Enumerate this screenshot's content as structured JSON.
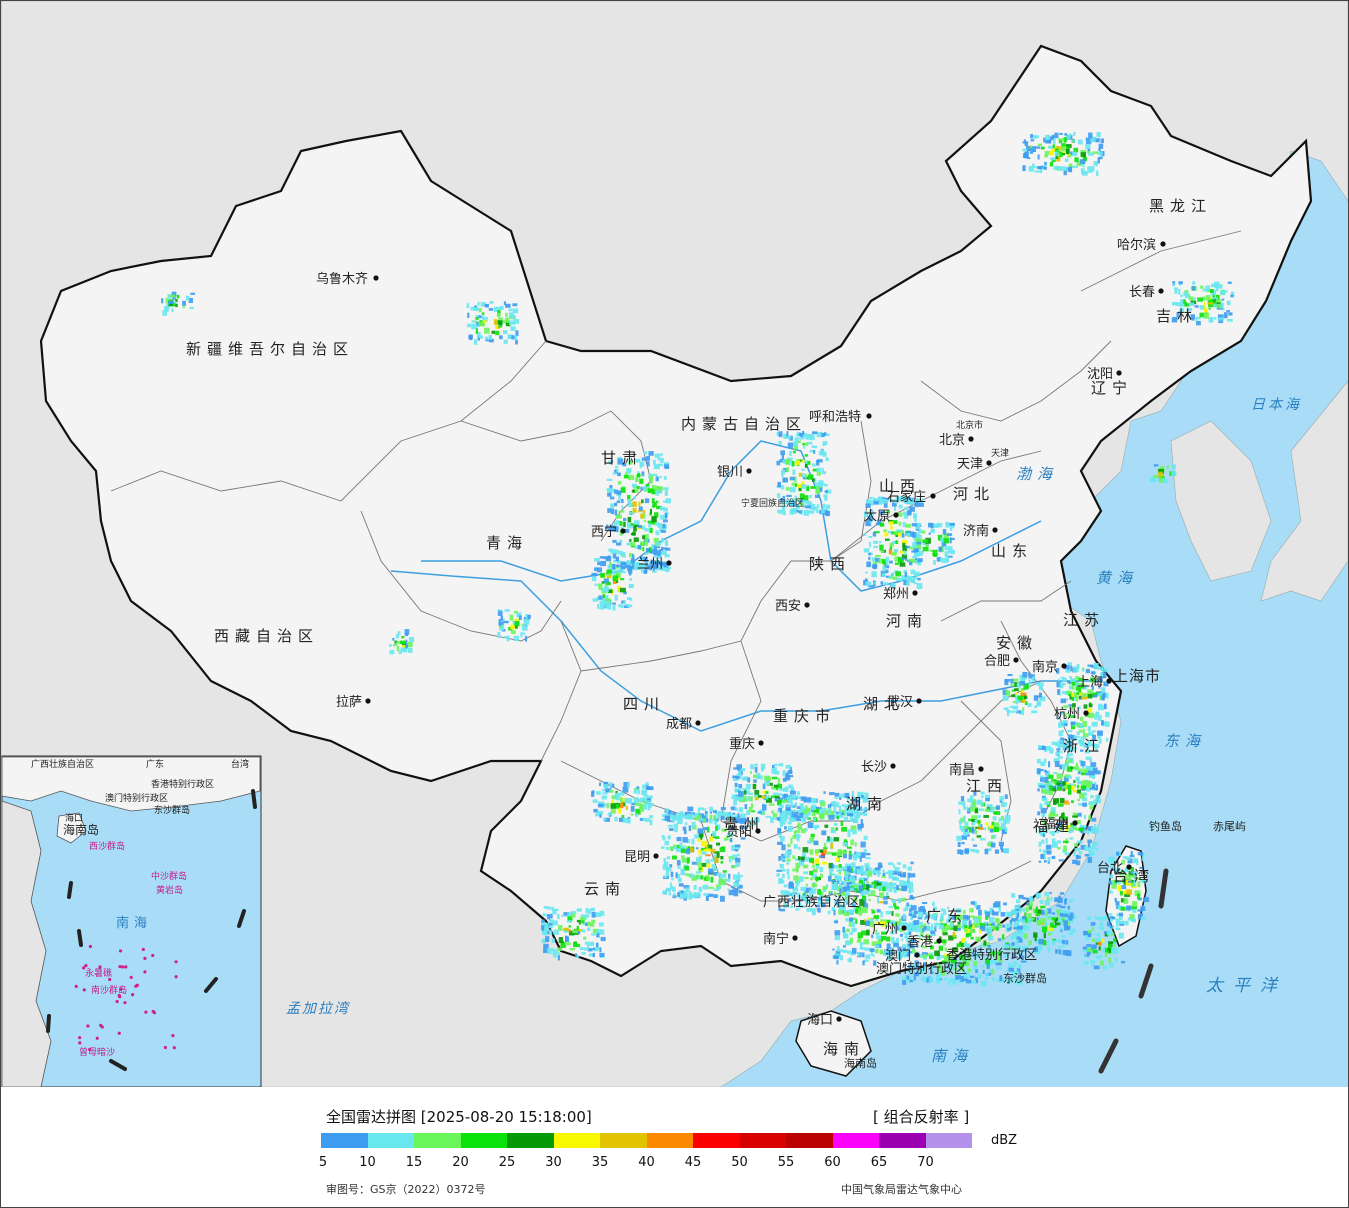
{
  "map": {
    "ocean_color": "#a9ddf7",
    "land_color": "#e5e5e5",
    "china_color": "#f4f4f4",
    "provinces": [
      "新疆维吾尔自治区",
      "西藏自治区",
      "青海",
      "甘肃",
      "内蒙古自治区",
      "黑龙江",
      "吉林",
      "辽宁",
      "河北",
      "山西",
      "陕西",
      "四川",
      "云南",
      "贵州",
      "重庆市",
      "湖南",
      "湖北",
      "河南",
      "山东",
      "江苏",
      "安徽",
      "浙江",
      "江西",
      "福建",
      "广东",
      "广西壮族自治区",
      "海南",
      "宁夏回族自治区",
      "北京市",
      "天津",
      "上海市",
      "台湾",
      "香港特别行政区",
      "澳门特别行政区"
    ],
    "cities": [
      "乌鲁木齐",
      "拉萨",
      "西宁",
      "兰州",
      "银川",
      "呼和浩特",
      "北京",
      "天津",
      "石家庄",
      "太原",
      "济南",
      "郑州",
      "西安",
      "成都",
      "重庆",
      "贵阳",
      "昆明",
      "长沙",
      "武汉",
      "合肥",
      "南京",
      "上海",
      "杭州",
      "南昌",
      "福州",
      "台北",
      "广州",
      "香港",
      "澳门",
      "南宁",
      "海口",
      "哈尔滨",
      "长春",
      "沈阳"
    ],
    "seas": [
      "渤海",
      "黄海",
      "东海",
      "南海",
      "日本海",
      "太平洋",
      "孟加拉湾"
    ],
    "islands": [
      "钓鱼岛",
      "赤尾屿",
      "东沙群岛",
      "海南岛"
    ],
    "inset": {
      "labels": [
        "海口",
        "海南岛",
        "西沙群岛",
        "中沙群岛",
        "黄岩岛",
        "南海",
        "南沙群岛",
        "永暑礁",
        "曾母暗沙",
        "广西壮族自治区",
        "广东",
        "香港特别行政区",
        "澳门特别行政区",
        "台湾",
        "东沙群岛"
      ]
    }
  },
  "legend": {
    "title": "全国雷达拼图 [2025-08-20 15:18:00]",
    "product": "[ 组合反射率 ]",
    "unit": "dBZ",
    "scale": [
      {
        "value": "5",
        "color": "#3d9cf0"
      },
      {
        "value": "10",
        "color": "#69e7ef"
      },
      {
        "value": "15",
        "color": "#6af55a"
      },
      {
        "value": "20",
        "color": "#0be10b"
      },
      {
        "value": "25",
        "color": "#069b06"
      },
      {
        "value": "30",
        "color": "#f8f800"
      },
      {
        "value": "35",
        "color": "#e2c300"
      },
      {
        "value": "40",
        "color": "#fb8a00"
      },
      {
        "value": "45",
        "color": "#fc0000"
      },
      {
        "value": "50",
        "color": "#d90000"
      },
      {
        "value": "55",
        "color": "#bb0000"
      },
      {
        "value": "60",
        "color": "#fb00fb"
      },
      {
        "value": "65",
        "color": "#9b00b1"
      },
      {
        "value": "70",
        "color": "#b491ea"
      }
    ],
    "approval": "审图号：GS京（2022）0372号",
    "agency": "中国气象局雷达气象中心"
  }
}
